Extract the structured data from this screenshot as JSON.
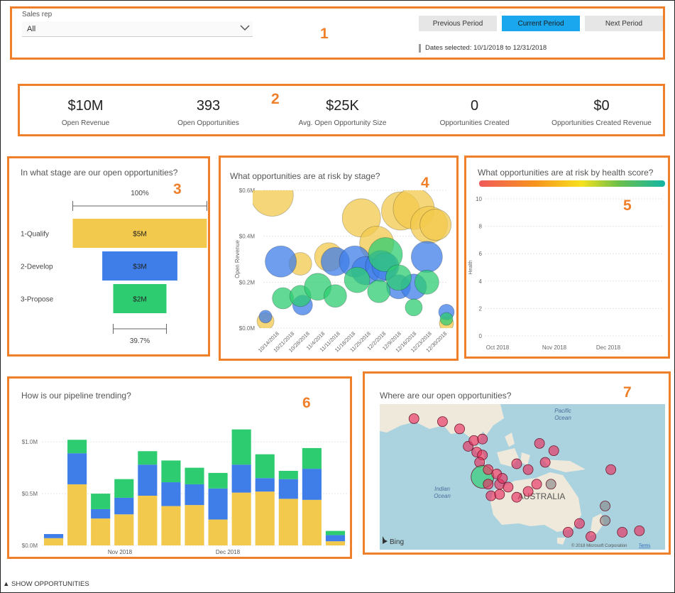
{
  "panel_numbers": [
    "1",
    "2",
    "3",
    "4",
    "5",
    "6",
    "7"
  ],
  "slicer": {
    "label": "Sales rep",
    "value": "All"
  },
  "period_buttons": {
    "previous": "Previous Period",
    "current": "Current Period",
    "next": "Next Period"
  },
  "dates_selected": "Dates selected: 10/1/2018 to 12/31/2018",
  "kpis": [
    {
      "value": "$10M",
      "label": "Open Revenue"
    },
    {
      "value": "393",
      "label": "Open Opportunities"
    },
    {
      "value": "$25K",
      "label": "Avg. Open Opportunity Size"
    },
    {
      "value": "0",
      "label": "Opportunities Created"
    },
    {
      "value": "$0",
      "label": "Opportunities Created Revenue"
    }
  ],
  "colors": {
    "accent_orange": "#f07f2a",
    "yellow": "#f2c94c",
    "blue": "#3f7ee8",
    "green": "#2ecc71",
    "button_blue": "#1aa7ee"
  },
  "funnel": {
    "title": "In what stage are our open opportunities?",
    "top_pct": "100%",
    "bottom_pct": "39.7%",
    "stages": [
      {
        "name": "1-Qualify",
        "label": "$5M",
        "value": 5.0,
        "color": "#f2c94c"
      },
      {
        "name": "2-Develop",
        "label": "$3M",
        "value": 2.8,
        "color": "#3f7ee8"
      },
      {
        "name": "3-Propose",
        "label": "$2M",
        "value": 1.985,
        "color": "#2ecc71"
      }
    ]
  },
  "chart_data": [
    {
      "type": "scatter",
      "title": "What opportunities are at risk by stage?",
      "ylabel": "Open Revenue",
      "xlabel": "",
      "ylim": [
        0,
        0.6
      ],
      "yticks": [
        "$0.0M",
        "$0.2M",
        "$0.4M",
        "$0.6M"
      ],
      "xticks": [
        "10/14/2018",
        "10/21/2018",
        "10/28/2018",
        "11/4/2018",
        "11/11/2018",
        "11/18/2018",
        "11/25/2018",
        "12/2/2018",
        "12/9/2018",
        "12/16/2018",
        "12/23/2018",
        "12/30/2018"
      ],
      "x_start": "2018-10-08",
      "x_end": "2018-12-31",
      "grid": true,
      "series": [
        {
          "color": "#f2c94c",
          "points": [
            {
              "x": "2018-10-09",
              "y": 0.03,
              "s": 12
            },
            {
              "x": "2018-10-12",
              "y": 0.58,
              "s": 30
            },
            {
              "x": "2018-10-25",
              "y": 0.28,
              "s": 16
            },
            {
              "x": "2018-11-07",
              "y": 0.31,
              "s": 20
            },
            {
              "x": "2018-11-22",
              "y": 0.48,
              "s": 27
            },
            {
              "x": "2018-11-29",
              "y": 0.37,
              "s": 24
            },
            {
              "x": "2018-12-10",
              "y": 0.51,
              "s": 27
            },
            {
              "x": "2018-12-16",
              "y": 0.52,
              "s": 29
            },
            {
              "x": "2018-12-23",
              "y": 0.45,
              "s": 26
            },
            {
              "x": "2018-12-26",
              "y": 0.45,
              "s": 22
            },
            {
              "x": "2018-12-31",
              "y": 0.02,
              "s": 10
            }
          ]
        },
        {
          "color": "#3f7ee8",
          "points": [
            {
              "x": "2018-10-09",
              "y": 0.05,
              "s": 9
            },
            {
              "x": "2018-10-16",
              "y": 0.29,
              "s": 22
            },
            {
              "x": "2018-10-26",
              "y": 0.1,
              "s": 14
            },
            {
              "x": "2018-11-10",
              "y": 0.29,
              "s": 20
            },
            {
              "x": "2018-11-19",
              "y": 0.29,
              "s": 22
            },
            {
              "x": "2018-11-24",
              "y": 0.25,
              "s": 20
            },
            {
              "x": "2018-12-01",
              "y": 0.27,
              "s": 22
            },
            {
              "x": "2018-12-03",
              "y": 0.27,
              "s": 19
            },
            {
              "x": "2018-12-09",
              "y": 0.18,
              "s": 17
            },
            {
              "x": "2018-12-16",
              "y": 0.18,
              "s": 18
            },
            {
              "x": "2018-12-22",
              "y": 0.31,
              "s": 22
            },
            {
              "x": "2018-12-31",
              "y": 0.07,
              "s": 11
            }
          ]
        },
        {
          "color": "#2ecc71",
          "points": [
            {
              "x": "2018-10-17",
              "y": 0.13,
              "s": 15
            },
            {
              "x": "2018-10-25",
              "y": 0.14,
              "s": 15
            },
            {
              "x": "2018-11-02",
              "y": 0.18,
              "s": 19
            },
            {
              "x": "2018-11-10",
              "y": 0.14,
              "s": 16
            },
            {
              "x": "2018-11-20",
              "y": 0.21,
              "s": 18
            },
            {
              "x": "2018-11-30",
              "y": 0.16,
              "s": 16
            },
            {
              "x": "2018-12-03",
              "y": 0.32,
              "s": 24
            },
            {
              "x": "2018-12-09",
              "y": 0.22,
              "s": 18
            },
            {
              "x": "2018-12-16",
              "y": 0.09,
              "s": 12
            },
            {
              "x": "2018-12-22",
              "y": 0.2,
              "s": 17
            },
            {
              "x": "2018-12-31",
              "y": 0.04,
              "s": 9
            }
          ]
        }
      ]
    },
    {
      "type": "line",
      "title": "What opportunities are at risk by health score?",
      "ylabel": "Health",
      "xlabel": "",
      "ylim": [
        0,
        10
      ],
      "yticks": [
        "0",
        "2",
        "4",
        "6",
        "8",
        "10"
      ],
      "xticks": [
        "Oct 2018",
        "Nov 2018",
        "Dec 2018"
      ],
      "grid": true,
      "series": []
    },
    {
      "type": "bar",
      "title": "How is our pipeline trending?",
      "ylabel": "",
      "xlabel": "",
      "ylim": [
        0,
        1.2
      ],
      "yticks": [
        "$0.0M",
        "$0.5M",
        "$1.0M"
      ],
      "xticks": [
        "Nov 2018",
        "Dec 2018"
      ],
      "stacked": true,
      "series": [
        {
          "color": "#f2c94c",
          "values": [
            0.07,
            0.59,
            0.26,
            0.3,
            0.48,
            0.38,
            0.39,
            0.25,
            0.51,
            0.52,
            0.45,
            0.44,
            0.04
          ]
        },
        {
          "color": "#3f7ee8",
          "values": [
            0.04,
            0.3,
            0.09,
            0.16,
            0.3,
            0.23,
            0.2,
            0.3,
            0.27,
            0.13,
            0.19,
            0.3,
            0.06
          ]
        },
        {
          "color": "#2ecc71",
          "values": [
            0.0,
            0.13,
            0.15,
            0.18,
            0.13,
            0.21,
            0.16,
            0.15,
            0.34,
            0.23,
            0.08,
            0.2,
            0.04
          ]
        }
      ]
    }
  ],
  "map": {
    "title": "Where are our open opportunities?",
    "labels": {
      "pacific": "Pacific\nOcean",
      "indian": "Indian\nOcean",
      "australia": "AUSTRALIA"
    },
    "bing": "Bing",
    "copyright": "© 2018 Microsoft Corporation",
    "terms": "Terms",
    "markers": [
      {
        "lon": 0.12,
        "lat": 0.1,
        "c": "#e8305f"
      },
      {
        "lon": 0.22,
        "lat": 0.12,
        "c": "#e8305f"
      },
      {
        "lon": 0.28,
        "lat": 0.17,
        "c": "#e8305f"
      },
      {
        "lon": 0.31,
        "lat": 0.29,
        "c": "#e8305f"
      },
      {
        "lon": 0.33,
        "lat": 0.25,
        "c": "#e8305f"
      },
      {
        "lon": 0.36,
        "lat": 0.24,
        "c": "#e8305f"
      },
      {
        "lon": 0.34,
        "lat": 0.33,
        "c": "#e8305f"
      },
      {
        "lon": 0.36,
        "lat": 0.35,
        "c": "#e8305f"
      },
      {
        "lon": 0.35,
        "lat": 0.4,
        "c": "#e8305f"
      },
      {
        "lon": 0.36,
        "lat": 0.5,
        "c": "#2ecc71",
        "big": true
      },
      {
        "lon": 0.38,
        "lat": 0.45,
        "c": "#e8305f"
      },
      {
        "lon": 0.41,
        "lat": 0.48,
        "c": "#e8305f"
      },
      {
        "lon": 0.38,
        "lat": 0.55,
        "c": "#e8305f"
      },
      {
        "lon": 0.42,
        "lat": 0.55,
        "c": "#e8305f"
      },
      {
        "lon": 0.45,
        "lat": 0.57,
        "c": "#e8305f"
      },
      {
        "lon": 0.43,
        "lat": 0.51,
        "c": "#e8305f"
      },
      {
        "lon": 0.48,
        "lat": 0.41,
        "c": "#e8305f"
      },
      {
        "lon": 0.52,
        "lat": 0.45,
        "c": "#e8305f"
      },
      {
        "lon": 0.56,
        "lat": 0.27,
        "c": "#e8305f"
      },
      {
        "lon": 0.58,
        "lat": 0.4,
        "c": "#e8305f"
      },
      {
        "lon": 0.61,
        "lat": 0.32,
        "c": "#e8305f"
      },
      {
        "lon": 0.6,
        "lat": 0.55,
        "c": "#888888"
      },
      {
        "lon": 0.55,
        "lat": 0.55,
        "c": "#e8305f"
      },
      {
        "lon": 0.52,
        "lat": 0.6,
        "c": "#e8305f"
      },
      {
        "lon": 0.39,
        "lat": 0.63,
        "c": "#e8305f"
      },
      {
        "lon": 0.81,
        "lat": 0.45,
        "c": "#e8305f"
      },
      {
        "lon": 0.48,
        "lat": 0.64,
        "c": "#e8305f"
      },
      {
        "lon": 0.66,
        "lat": 0.88,
        "c": "#e8305f"
      },
      {
        "lon": 0.7,
        "lat": 0.82,
        "c": "#e8305f"
      },
      {
        "lon": 0.74,
        "lat": 0.91,
        "c": "#e8305f"
      },
      {
        "lon": 0.79,
        "lat": 0.8,
        "c": "#888888"
      },
      {
        "lon": 0.79,
        "lat": 0.7,
        "c": "#888888"
      },
      {
        "lon": 0.85,
        "lat": 0.88,
        "c": "#e8305f"
      },
      {
        "lon": 0.91,
        "lat": 0.87,
        "c": "#e8305f"
      },
      {
        "lon": 0.42,
        "lat": 0.62,
        "c": "#e8305f"
      }
    ]
  },
  "footer": {
    "show_opps": "SHOW OPPORTUNITIES",
    "glyph": "▲"
  }
}
